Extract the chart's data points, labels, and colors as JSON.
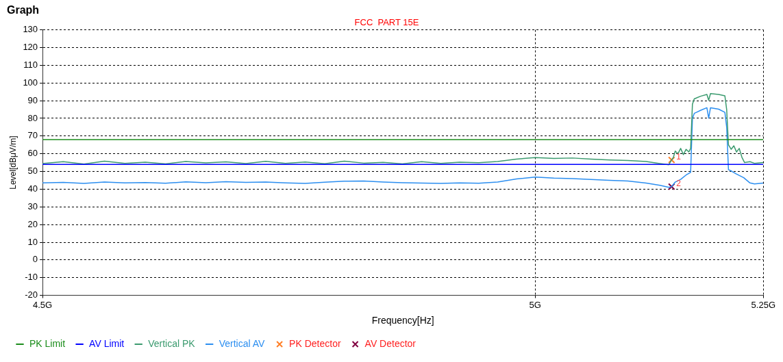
{
  "chart_data": {
    "type": "line",
    "title": "FCC  PART 15E",
    "xlabel": "Frequency[Hz]",
    "ylabel": "Level[dBμV/m]",
    "annotations": [
      "Graph",
      {
        "text": "1",
        "x": 5.148,
        "y": 56.5
      },
      {
        "text": "2",
        "x": 5.148,
        "y": 41.4
      }
    ],
    "log": "x",
    "xlim": [
      4.5,
      5.25
    ],
    "xticks": [
      {
        "value": 4.5,
        "label": "4.5G"
      },
      {
        "value": 5,
        "label": "5G"
      },
      {
        "value": 5.25,
        "label": "5.25G"
      }
    ],
    "ylim": [
      -20,
      130
    ],
    "yticks": [
      -20,
      -10,
      0,
      10,
      20,
      30,
      40,
      50,
      60,
      70,
      80,
      90,
      100,
      110,
      120,
      130
    ],
    "grid": true,
    "legend": "bottom left",
    "marker": "none",
    "line_style": "solid",
    "series": [
      {
        "name": "PK Limit",
        "color": "#1a8c1a",
        "x": [
          4.5,
          5.25
        ],
        "values": [
          68,
          68
        ]
      },
      {
        "name": "AV Limit",
        "color": "#0000ff",
        "x": [
          4.5,
          5.25
        ],
        "values": [
          54,
          54
        ]
      },
      {
        "name": "Vertical PK",
        "color": "#3a9a6e",
        "x": [
          4.5,
          4.52,
          4.54,
          4.56,
          4.58,
          4.6,
          4.62,
          4.64,
          4.66,
          4.68,
          4.7,
          4.72,
          4.74,
          4.76,
          4.78,
          4.8,
          4.82,
          4.84,
          4.86,
          4.88,
          4.9,
          4.92,
          4.94,
          4.96,
          4.98,
          5.0,
          5.02,
          5.04,
          5.06,
          5.08,
          5.1,
          5.12,
          5.135,
          5.145,
          5.148,
          5.15,
          5.152,
          5.155,
          5.158,
          5.161,
          5.164,
          5.167,
          5.169,
          5.171,
          5.173,
          5.18,
          5.187,
          5.189,
          5.191,
          5.2,
          5.207,
          5.209,
          5.211,
          5.214,
          5.217,
          5.22,
          5.223,
          5.226,
          5.229,
          5.235,
          5.24,
          5.25
        ],
        "values": [
          54.5,
          55.5,
          54.2,
          55.8,
          54.6,
          55.2,
          54.3,
          55.6,
          54.8,
          55.4,
          54.5,
          55.7,
          54.6,
          55.3,
          54.4,
          55.8,
          54.7,
          55.1,
          54.3,
          55.5,
          54.6,
          55.2,
          54.9,
          55.6,
          57,
          57.8,
          57.4,
          57.6,
          57,
          56.5,
          56.2,
          55.6,
          54.5,
          53.8,
          56.5,
          58,
          61.5,
          60,
          63,
          59.5,
          62.5,
          61,
          63,
          88,
          91,
          92.5,
          93.5,
          90.2,
          94,
          93.5,
          92.7,
          85,
          65,
          62.5,
          64.5,
          61,
          63,
          58,
          55,
          55.5,
          54.6,
          55
        ]
      },
      {
        "name": "Vertical AV",
        "color": "#2b8ef0",
        "x": [
          4.5,
          4.52,
          4.54,
          4.56,
          4.58,
          4.6,
          4.62,
          4.64,
          4.66,
          4.68,
          4.7,
          4.72,
          4.74,
          4.76,
          4.78,
          4.8,
          4.82,
          4.84,
          4.86,
          4.88,
          4.9,
          4.92,
          4.94,
          4.96,
          4.98,
          5.0,
          5.02,
          5.04,
          5.06,
          5.08,
          5.1,
          5.12,
          5.135,
          5.145,
          5.148,
          5.152,
          5.158,
          5.164,
          5.169,
          5.171,
          5.173,
          5.18,
          5.187,
          5.189,
          5.191,
          5.2,
          5.207,
          5.209,
          5.211,
          5.215,
          5.22,
          5.228,
          5.235,
          5.24,
          5.25
        ],
        "values": [
          43.5,
          43.8,
          43.2,
          44,
          43.5,
          43.7,
          43.3,
          44.1,
          43.6,
          44.2,
          43.8,
          44,
          43.5,
          43.2,
          43.9,
          44.5,
          44.6,
          44,
          43.6,
          43.4,
          43.2,
          43.5,
          43.3,
          44,
          45.8,
          46.8,
          46.2,
          46,
          45.5,
          45,
          44.6,
          43.4,
          42.2,
          41,
          41.4,
          44,
          45.5,
          48,
          49.5,
          80,
          82.8,
          84.5,
          86,
          80.1,
          86,
          85.2,
          83.4,
          75,
          51,
          50,
          48.5,
          46.5,
          43.5,
          43,
          43.4
        ]
      },
      {
        "name": "PK Detector",
        "type": "scatter",
        "marker": "cross",
        "color": "#ff7f27",
        "x": [
          5.148
        ],
        "values": [
          56.5
        ]
      },
      {
        "name": "AV Detector",
        "type": "scatter",
        "marker": "cross",
        "color": "#800040",
        "x": [
          5.148
        ],
        "values": [
          41.4
        ]
      }
    ]
  }
}
